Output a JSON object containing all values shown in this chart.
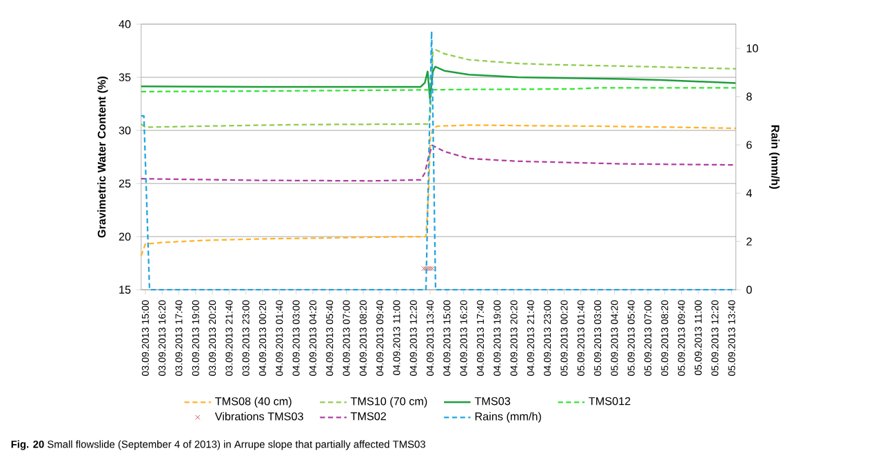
{
  "chart_data": {
    "type": "line",
    "ylabel": "Gravimetric Water Content (%)",
    "y2label": "Rain (mm/h)",
    "annotations": [
      "**Fig. 20** Small flowslide (September 4 of 2013) in Arrupe slope that partially affected TMS03"
    ],
    "xlim": [
      "2013-09-03T14:40",
      "2013-09-05T14:00"
    ],
    "xticks": [
      {
        "value": "2013-09-03T15:00",
        "label": "03.09.2013 15:00"
      },
      {
        "value": "2013-09-03T16:20",
        "label": "03.09.2013 16:20"
      },
      {
        "value": "2013-09-03T17:40",
        "label": "03.09.2013 17:40"
      },
      {
        "value": "2013-09-03T19:00",
        "label": "03.09.2013 19:00"
      },
      {
        "value": "2013-09-03T20:20",
        "label": "03.09.2013 20:20"
      },
      {
        "value": "2013-09-03T21:40",
        "label": "03.09.2013 21:40"
      },
      {
        "value": "2013-09-03T23:00",
        "label": "03.09.2013 23:00"
      },
      {
        "value": "2013-09-04T00:20",
        "label": "04.09.2013 00:20"
      },
      {
        "value": "2013-09-04T01:40",
        "label": "04.09.2013 01:40"
      },
      {
        "value": "2013-09-04T03:00",
        "label": "04.09.2013 03:00"
      },
      {
        "value": "2013-09-04T04:20",
        "label": "04.09.2013 04:20"
      },
      {
        "value": "2013-09-04T05:40",
        "label": "04.09.2013 05:40"
      },
      {
        "value": "2013-09-04T07:00",
        "label": "04.09.2013 07:00"
      },
      {
        "value": "2013-09-04T08:20",
        "label": "04.09.2013 08:20"
      },
      {
        "value": "2013-09-04T09:40",
        "label": "04.09.2013 09:40"
      },
      {
        "value": "2013-09-04T11:00",
        "label": "04.09.2013 11:00"
      },
      {
        "value": "2013-09-04T12:20",
        "label": "04.09.2013 12:20"
      },
      {
        "value": "2013-09-04T13:40",
        "label": "04.09.2013 13:40"
      },
      {
        "value": "2013-09-04T15:00",
        "label": "04.09.2013 15:00"
      },
      {
        "value": "2013-09-04T16:20",
        "label": "04.09.2013 16:20"
      },
      {
        "value": "2013-09-04T17:40",
        "label": "04.09.2013 17:40"
      },
      {
        "value": "2013-09-04T19:00",
        "label": "04.09.2013 19:00"
      },
      {
        "value": "2013-09-04T20:20",
        "label": "04.09.2013 20:20"
      },
      {
        "value": "2013-09-04T21:40",
        "label": "04.09.2013 21:40"
      },
      {
        "value": "2013-09-04T23:00",
        "label": "04.09.2013 23:00"
      },
      {
        "value": "2013-09-05T00:20",
        "label": "05.09.2013 00:20"
      },
      {
        "value": "2013-09-05T01:40",
        "label": "05.09.2013 01:40"
      },
      {
        "value": "2013-09-05T03:00",
        "label": "05.09.2013 03:00"
      },
      {
        "value": "2013-09-05T04:20",
        "label": "05.09.2013 04:20"
      },
      {
        "value": "2013-09-05T05:40",
        "label": "05.09.2013 05:40"
      },
      {
        "value": "2013-09-05T07:00",
        "label": "05.09.2013 07:00"
      },
      {
        "value": "2013-09-05T08:20",
        "label": "05.09.2013 08:20"
      },
      {
        "value": "2013-09-05T09:40",
        "label": "05.09.2013 09:40"
      },
      {
        "value": "2013-09-05T11:00",
        "label": "05.09.2013 11:00"
      },
      {
        "value": "2013-09-05T12:20",
        "label": "05.09.2013 12:20"
      },
      {
        "value": "2013-09-05T13:40",
        "label": "05.09.2013 13:40"
      }
    ],
    "ylim": [
      15,
      40
    ],
    "yticks": [
      15,
      20,
      25,
      30,
      35,
      40
    ],
    "y2lim": [
      0,
      11
    ],
    "y2ticks": [
      0,
      2,
      4,
      6,
      8,
      10
    ],
    "grid": "y",
    "legend": "bottom",
    "series": [
      {
        "name": "TMS08 (40 cm)",
        "color": "#ffb324",
        "line_style": "dashed",
        "x": [
          "2013-09-03T14:40",
          "2013-09-03T15:00",
          "2013-09-03T16:20",
          "2013-09-03T19:40",
          "2013-09-04T00:40",
          "2013-09-04T04:00",
          "2013-09-04T09:00",
          "2013-09-04T13:20",
          "2013-09-04T13:32",
          "2013-09-04T13:41",
          "2013-09-04T13:55",
          "2013-09-04T14:15",
          "2013-09-04T16:45",
          "2013-09-04T21:00",
          "2013-09-05T03:00",
          "2013-09-05T09:00",
          "2013-09-05T14:00"
        ],
        "values": [
          18.2,
          19.3,
          19.45,
          19.65,
          19.8,
          19.85,
          19.95,
          20.0,
          24.0,
          29.3,
          30.2,
          30.4,
          30.5,
          30.45,
          30.4,
          30.3,
          30.2
        ]
      },
      {
        "name": "TMS10 (70 cm)",
        "color": "#8fcc4a",
        "line_style": "dashed",
        "x": [
          "2013-09-03T14:40",
          "2013-09-03T15:00",
          "2013-09-03T19:40",
          "2013-09-04T00:40",
          "2013-09-04T04:00",
          "2013-09-04T13:32",
          "2013-09-04T13:41",
          "2013-09-04T13:53",
          "2013-09-04T14:05",
          "2013-09-04T14:50",
          "2013-09-04T16:45",
          "2013-09-04T20:40",
          "2013-09-04T23:00",
          "2013-09-05T07:00",
          "2013-09-05T14:00"
        ],
        "values": [
          30.6,
          30.3,
          30.4,
          30.5,
          30.55,
          30.6,
          31.7,
          37.3,
          37.6,
          37.2,
          36.65,
          36.3,
          36.2,
          36.0,
          35.8
        ]
      },
      {
        "name": "TMS03",
        "color": "#1e9e3c",
        "line_style": "solid",
        "x": [
          "2013-09-03T14:40",
          "2013-09-04T00:00",
          "2013-09-04T12:55",
          "2013-09-04T13:15",
          "2013-09-04T13:28",
          "2013-09-04T13:39",
          "2013-09-04T13:53",
          "2013-09-04T14:04",
          "2013-09-04T14:50",
          "2013-09-04T16:45",
          "2013-09-04T20:40",
          "2013-09-04T23:00",
          "2013-09-05T05:00",
          "2013-09-05T08:00",
          "2013-09-05T11:00",
          "2013-09-05T14:00"
        ],
        "values": [
          34.15,
          34.1,
          34.1,
          34.5,
          35.55,
          33.0,
          35.55,
          36.0,
          35.6,
          35.25,
          35.0,
          34.95,
          34.85,
          34.75,
          34.6,
          34.45
        ]
      },
      {
        "name": "TMS012",
        "color": "#2ee62e",
        "line_style": "dashed",
        "x": [
          "2013-09-03T14:40",
          "2013-09-04T00:00",
          "2013-09-04T12:00",
          "2013-09-04T16:00",
          "2013-09-05T01:00",
          "2013-09-05T03:00",
          "2013-09-05T14:00"
        ],
        "values": [
          33.65,
          33.7,
          33.8,
          33.85,
          33.9,
          34.0,
          34.0
        ]
      },
      {
        "name": "Vibrations TMS03",
        "type": "scatter",
        "marker": "cross",
        "color": "#c0504d",
        "x": [
          "2013-09-04T13:10",
          "2013-09-04T13:20",
          "2013-09-04T13:30",
          "2013-09-04T13:40",
          "2013-09-04T13:50"
        ],
        "values": [
          17,
          17,
          17,
          17,
          17
        ]
      },
      {
        "name": "TMS02",
        "color": "#b03ca0",
        "line_style": "dashed",
        "x": [
          "2013-09-03T14:40",
          "2013-09-04T00:00",
          "2013-09-04T09:00",
          "2013-09-04T12:55",
          "2013-09-04T13:15",
          "2013-09-04T13:32",
          "2013-09-04T13:50",
          "2013-09-04T14:50",
          "2013-09-04T16:45",
          "2013-09-04T20:40",
          "2013-09-05T00:00",
          "2013-09-05T05:00",
          "2013-09-05T14:00"
        ],
        "values": [
          25.45,
          25.3,
          25.25,
          25.35,
          26.0,
          27.5,
          28.6,
          28.0,
          27.35,
          27.1,
          27.0,
          26.85,
          26.75
        ]
      },
      {
        "name": "Rains (mm/h)",
        "color": "#1fa5e0",
        "line_style": "dashed",
        "axis": "y2",
        "x": [
          "2013-09-03T14:40",
          "2013-09-03T14:53",
          "2013-09-03T15:20",
          "2013-09-04T13:20",
          "2013-09-04T13:47",
          "2013-09-04T14:06",
          "2013-09-05T14:00"
        ],
        "values": [
          7.2,
          7.2,
          0,
          0,
          10.7,
          0,
          0
        ]
      }
    ]
  }
}
